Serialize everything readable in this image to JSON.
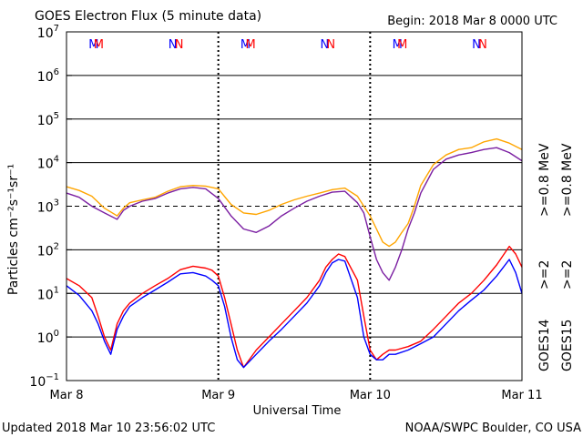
{
  "chart_data": {
    "type": "line",
    "title": "GOES Electron Flux (5 minute data)",
    "begin_label": "Begin: 2018 Mar 8 0000 UTC",
    "ylabel": "Particles cm⁻²s⁻¹sr⁻¹",
    "xlabel": "Universal Time",
    "y_scale": "log",
    "ylim": [
      0.1,
      10000000
    ],
    "y_ticks": [
      {
        "base": "10",
        "exp": "−1",
        "value": 0.1
      },
      {
        "base": "10",
        "exp": "0",
        "value": 1
      },
      {
        "base": "10",
        "exp": "1",
        "value": 10
      },
      {
        "base": "10",
        "exp": "2",
        "value": 100
      },
      {
        "base": "10",
        "exp": "3",
        "value": 1000
      },
      {
        "base": "10",
        "exp": "4",
        "value": 10000
      },
      {
        "base": "10",
        "exp": "5",
        "value": 100000
      },
      {
        "base": "10",
        "exp": "6",
        "value": 1000000
      },
      {
        "base": "10",
        "exp": "7",
        "value": 10000000
      }
    ],
    "xlim": [
      0,
      72
    ],
    "x_unit": "hours since 2018 Mar 8 0000 UTC",
    "x_ticks": [
      {
        "label": "Mar 8",
        "value": 0
      },
      {
        "label": "Mar 9",
        "value": 24
      },
      {
        "label": "Mar 10",
        "value": 48
      },
      {
        "label": "Mar 11",
        "value": 72
      }
    ],
    "alert_threshold": 1000,
    "series": [
      {
        "name": "GOES15 >=0.8 MeV",
        "color": "#ffa500",
        "x": [
          0,
          2,
          4,
          6,
          8,
          9,
          10,
          12,
          14,
          16,
          18,
          20,
          22,
          24,
          26,
          28,
          30,
          32,
          34,
          36,
          38,
          40,
          42,
          44,
          46,
          47,
          48,
          49,
          50,
          51,
          52,
          53,
          54,
          55,
          56,
          58,
          60,
          62,
          64,
          66,
          68,
          70,
          72
        ],
        "y": [
          2800,
          2300,
          1700,
          900,
          600,
          900,
          1200,
          1400,
          1600,
          2200,
          2800,
          3000,
          2900,
          2500,
          1100,
          700,
          650,
          800,
          1100,
          1400,
          1700,
          2000,
          2400,
          2600,
          1700,
          1000,
          600,
          300,
          150,
          120,
          150,
          250,
          400,
          1000,
          3000,
          9000,
          15000,
          20000,
          22000,
          30000,
          35000,
          28000,
          20000
        ]
      },
      {
        "name": "GOES14 >=0.8 MeV",
        "color": "#7b1fa2",
        "x": [
          0,
          2,
          4,
          6,
          8,
          9,
          10,
          12,
          14,
          16,
          18,
          20,
          22,
          24,
          26,
          28,
          30,
          32,
          34,
          36,
          38,
          40,
          42,
          44,
          46,
          47,
          48,
          49,
          50,
          51,
          52,
          53,
          54,
          55,
          56,
          58,
          60,
          62,
          64,
          66,
          68,
          70,
          72
        ],
        "y": [
          2000,
          1600,
          1000,
          700,
          500,
          800,
          1000,
          1300,
          1500,
          2000,
          2500,
          2700,
          2500,
          1500,
          600,
          300,
          250,
          350,
          600,
          900,
          1300,
          1700,
          2100,
          2200,
          1200,
          700,
          200,
          60,
          30,
          20,
          40,
          100,
          300,
          700,
          2000,
          7000,
          12000,
          15000,
          17000,
          20000,
          22000,
          17000,
          11000
        ]
      },
      {
        "name": "GOES15 >=2 MeV",
        "color": "#ff0000",
        "x": [
          0,
          2,
          4,
          5,
          6,
          7,
          8,
          9,
          10,
          12,
          14,
          16,
          18,
          20,
          22,
          23,
          24,
          25,
          26,
          27,
          28,
          30,
          32,
          34,
          36,
          38,
          40,
          41,
          42,
          43,
          44,
          46,
          47,
          48,
          49,
          50,
          51,
          52,
          54,
          56,
          58,
          60,
          62,
          64,
          66,
          68,
          70,
          71,
          72
        ],
        "y": [
          22,
          15,
          8,
          3,
          1,
          0.5,
          2,
          4,
          6,
          10,
          15,
          22,
          35,
          42,
          38,
          34,
          25,
          8,
          2,
          0.5,
          0.2,
          0.5,
          1,
          2,
          4,
          8,
          20,
          40,
          60,
          80,
          70,
          20,
          3,
          0.5,
          0.3,
          0.4,
          0.5,
          0.5,
          0.6,
          0.8,
          1.5,
          3,
          6,
          10,
          20,
          45,
          120,
          80,
          40
        ]
      },
      {
        "name": "GOES14 >=2 MeV",
        "color": "#0000ff",
        "x": [
          0,
          2,
          4,
          5,
          6,
          7,
          8,
          9,
          10,
          12,
          14,
          16,
          18,
          20,
          22,
          23,
          24,
          25,
          26,
          27,
          28,
          30,
          32,
          34,
          36,
          38,
          40,
          41,
          42,
          43,
          44,
          46,
          47,
          48,
          49,
          50,
          51,
          52,
          54,
          56,
          58,
          60,
          62,
          64,
          66,
          68,
          70,
          71,
          72
        ],
        "y": [
          15,
          9,
          4,
          2,
          0.8,
          0.4,
          1.5,
          3,
          5,
          8,
          12,
          18,
          28,
          30,
          25,
          20,
          15,
          5,
          1,
          0.3,
          0.2,
          0.4,
          0.8,
          1.5,
          3,
          6,
          15,
          30,
          50,
          60,
          55,
          8,
          1,
          0.4,
          0.3,
          0.3,
          0.4,
          0.4,
          0.5,
          0.7,
          1,
          2,
          4,
          7,
          12,
          25,
          60,
          30,
          10
        ]
      }
    ],
    "legend": [
      {
        "sat": "GOES14",
        "text_high": ">=0.8 MeV",
        "text_low": ">=2",
        "color_high": "#7b1fa2",
        "color_low": "#0000ff",
        "color_sat": "#000000"
      },
      {
        "sat": "GOES15",
        "text_high": ">=0.8 MeV",
        "text_low": ">=2",
        "color_high": "#ffa500",
        "color_low": "#ff0000",
        "color_sat": "#000000"
      }
    ],
    "markers": [
      {
        "text": "M",
        "color": "#0000ff",
        "x": 4.3
      },
      {
        "text": "M",
        "color": "#ff0000",
        "x": 5.1
      },
      {
        "text": "N",
        "color": "#0000ff",
        "x": 16.8
      },
      {
        "text": "N",
        "color": "#ff0000",
        "x": 17.8
      },
      {
        "text": "M",
        "color": "#0000ff",
        "x": 28.3
      },
      {
        "text": "M",
        "color": "#ff0000",
        "x": 29.1
      },
      {
        "text": "N",
        "color": "#0000ff",
        "x": 40.8
      },
      {
        "text": "N",
        "color": "#ff0000",
        "x": 41.8
      },
      {
        "text": "M",
        "color": "#0000ff",
        "x": 52.3
      },
      {
        "text": "M",
        "color": "#ff0000",
        "x": 53.1
      },
      {
        "text": "N",
        "color": "#0000ff",
        "x": 64.8
      },
      {
        "text": "N",
        "color": "#ff0000",
        "x": 65.8
      }
    ]
  },
  "footer": {
    "updated": "Updated 2018 Mar 10 23:56:02 UTC",
    "credit": "NOAA/SWPC Boulder, CO USA"
  }
}
